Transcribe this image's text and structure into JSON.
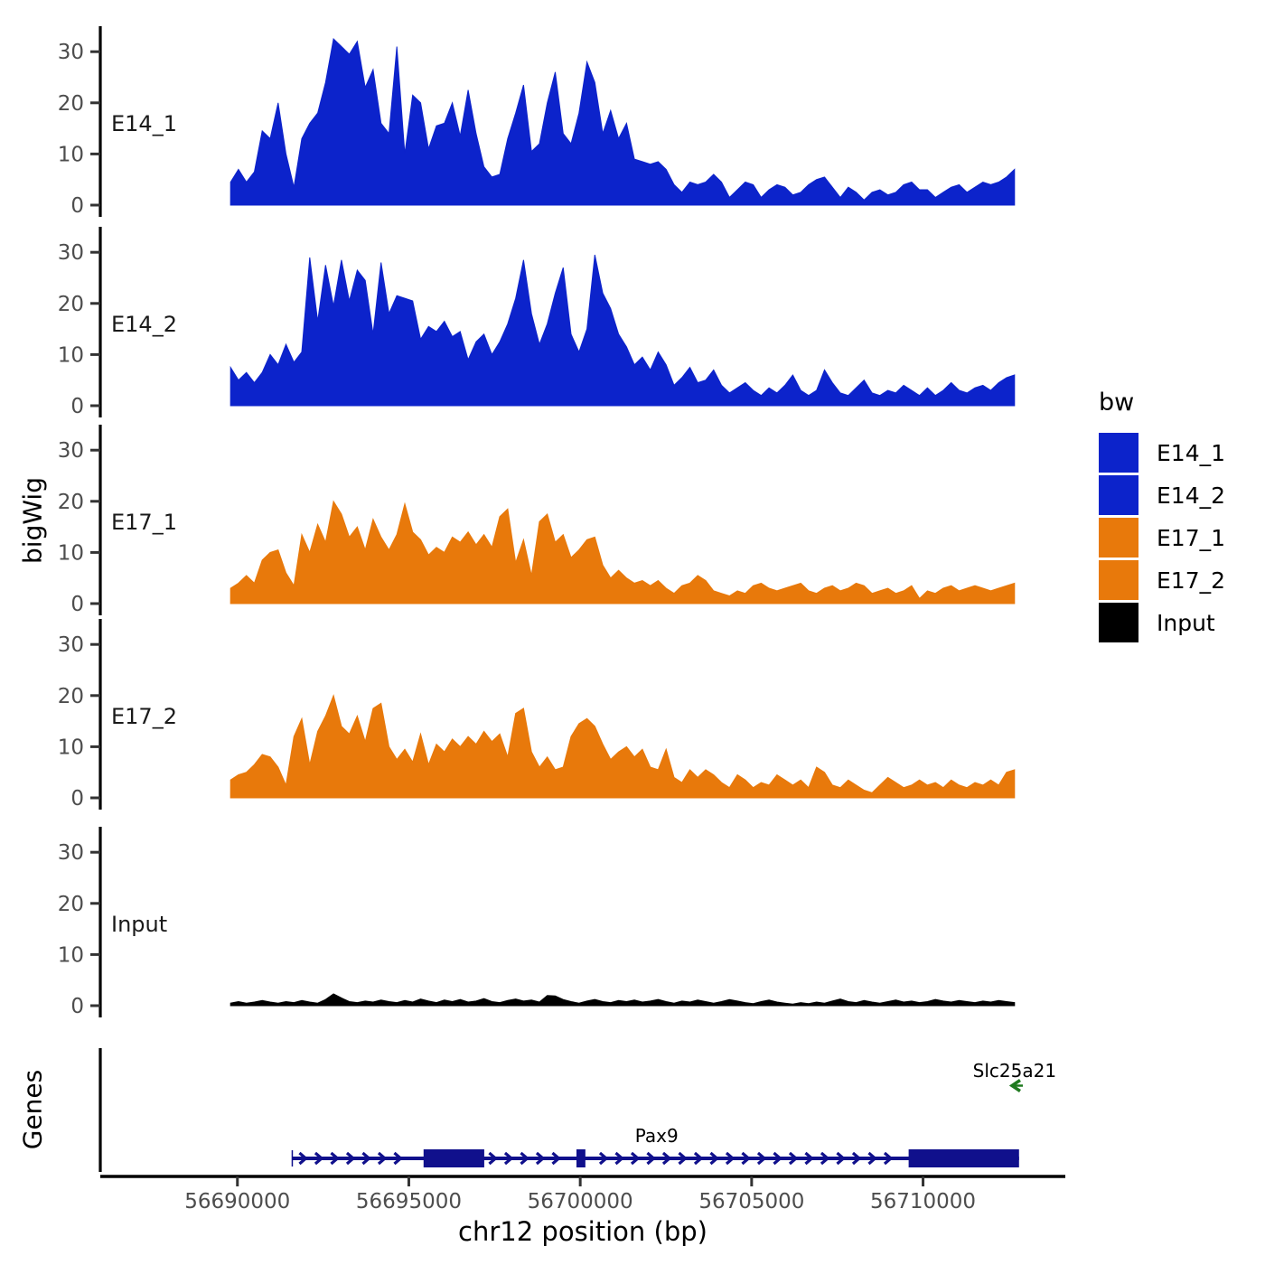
{
  "figure": {
    "y_axis_title": "bigWig",
    "genes_axis_title": "Genes",
    "x_axis_title": "chr12 position (bp)",
    "colors": {
      "blue": "#0C23CB",
      "orange": "#E8790B",
      "black": "#000000",
      "gene_navy": "#10108C",
      "gene_green": "#1F7A1F",
      "tick_label_grey": "#4D4D4D",
      "track_label_dark": "#1A1A1A"
    }
  },
  "legend": {
    "title": "bw",
    "items": [
      {
        "label": "E14_1",
        "color": "#0C23CB"
      },
      {
        "label": "E14_2",
        "color": "#0C23CB"
      },
      {
        "label": "E17_1",
        "color": "#E8790B"
      },
      {
        "label": "E17_2",
        "color": "#E8790B"
      },
      {
        "label": "Input",
        "color": "#000000"
      }
    ]
  },
  "chart_data": {
    "type": "area",
    "title": "",
    "xlabel": "chr12 position (bp)",
    "ylabel": "bigWig",
    "xlim": [
      56686000,
      56714150
    ],
    "ylim_per_track": [
      0,
      35
    ],
    "yticks": [
      0,
      10,
      20,
      30
    ],
    "xticks": [
      56690000,
      56695000,
      56700000,
      56705000,
      56710000
    ],
    "xtick_labels": [
      "56690000",
      "56695000",
      "56700000",
      "56705000",
      "56710000"
    ],
    "grid": false,
    "legend_position": "right",
    "x_start_bp": 56689800,
    "x_step_bp": 231,
    "n_points": 100,
    "series": [
      {
        "name": "E14_1",
        "color": "#0C23CB",
        "values": [
          4.5,
          7,
          4.5,
          6.5,
          14.5,
          13,
          20,
          10,
          3.5,
          13,
          16,
          18,
          24,
          32.5,
          31,
          29.5,
          32,
          23,
          26.5,
          16,
          14,
          31,
          10,
          21.5,
          20,
          11,
          15.5,
          16,
          20,
          13.5,
          22.5,
          14,
          7.5,
          5.5,
          6,
          13,
          18,
          23.5,
          10.5,
          12,
          20,
          26,
          14,
          12,
          18,
          28,
          24,
          14,
          18.5,
          13,
          16,
          9,
          8.5,
          8,
          8.5,
          7,
          4,
          2.5,
          4.5,
          4,
          4.5,
          6,
          4.5,
          1.5,
          3,
          4.5,
          4,
          1.5,
          3,
          4,
          3.5,
          2,
          2.5,
          4,
          5,
          5.5,
          3.5,
          1.5,
          3.5,
          2.5,
          1,
          2.5,
          3,
          2,
          2.5,
          4,
          4.5,
          3,
          3,
          1.5,
          2.5,
          3.5,
          4,
          2.5,
          3.5,
          4.5,
          4,
          4.5,
          5.5,
          7
        ]
      },
      {
        "name": "E14_2",
        "color": "#0C23CB",
        "values": [
          7.5,
          5,
          6.5,
          4.5,
          6.5,
          10,
          8,
          12,
          8.5,
          10.5,
          29,
          16.5,
          27.5,
          19.5,
          28.5,
          20.5,
          26.5,
          24.5,
          14,
          28,
          18,
          21.5,
          21,
          20.5,
          13,
          15.5,
          14.5,
          16.5,
          13.5,
          14.5,
          9,
          12.5,
          14,
          10,
          12.5,
          16,
          21,
          28.5,
          18,
          12,
          16,
          22,
          27,
          14,
          10.5,
          15,
          29.5,
          22,
          19,
          14,
          11.5,
          8,
          9.5,
          7,
          10.5,
          8,
          4,
          5.5,
          7.5,
          4.5,
          5,
          7,
          4,
          2.5,
          3.5,
          4.5,
          3,
          2,
          3.5,
          2.5,
          4,
          6,
          3,
          2,
          3,
          7,
          4.5,
          2.5,
          2,
          3.5,
          5,
          2.5,
          2,
          3,
          2.5,
          4,
          3,
          2,
          3.5,
          2,
          3,
          4.5,
          3,
          2.5,
          3.5,
          4,
          3,
          4.5,
          5.5,
          6
        ]
      },
      {
        "name": "E17_1",
        "color": "#E8790B",
        "values": [
          3,
          4,
          5.5,
          4,
          8.5,
          10,
          10.5,
          6,
          3.5,
          13.5,
          10,
          15.5,
          12,
          20,
          17.5,
          13,
          15,
          10.5,
          16.5,
          13,
          10.5,
          13.5,
          19.5,
          14,
          12.5,
          9.5,
          11,
          10,
          13,
          12,
          14,
          11.5,
          13.5,
          11,
          17,
          18.5,
          8,
          12.5,
          5.5,
          16,
          17.5,
          12,
          13.5,
          9,
          10.5,
          12.5,
          13,
          7.5,
          5,
          6.5,
          5,
          4,
          4.5,
          3.5,
          4.5,
          3,
          2,
          3.5,
          4,
          5.5,
          4.5,
          2.5,
          2,
          1.5,
          2.5,
          2,
          3.5,
          4,
          3,
          2.5,
          3,
          3.5,
          4,
          2.5,
          2,
          3,
          3.5,
          2.5,
          3,
          4,
          3.5,
          2,
          2.5,
          3,
          2,
          2.5,
          3.5,
          1,
          2.5,
          2,
          3,
          3.5,
          2.5,
          3,
          3.5,
          3,
          2.5,
          3,
          3.5,
          4
        ]
      },
      {
        "name": "E17_2",
        "color": "#E8790B",
        "values": [
          3.5,
          4.5,
          5,
          6.5,
          8.5,
          8,
          6,
          2.5,
          12,
          15.5,
          6.5,
          13,
          16,
          20,
          14,
          12.5,
          16,
          11,
          17.5,
          18.5,
          10,
          7.5,
          9.5,
          7,
          12.5,
          6.5,
          10.5,
          9,
          11.5,
          10,
          12,
          10.5,
          13,
          11,
          12.5,
          8,
          16.5,
          17.5,
          9,
          6,
          8,
          5.5,
          6,
          12,
          14.5,
          15.5,
          14,
          10.5,
          7.5,
          9,
          10,
          8,
          9.5,
          6,
          5.5,
          9.5,
          4,
          3,
          5.5,
          4,
          5.5,
          4.5,
          3,
          2,
          4.5,
          3.5,
          2,
          3,
          2.5,
          4.5,
          3.5,
          2.5,
          3.5,
          2,
          6,
          5,
          2.5,
          2,
          3.5,
          2.5,
          1.5,
          1,
          2.5,
          4,
          3,
          2,
          2.5,
          3.5,
          2.5,
          3,
          2,
          3.5,
          2.5,
          2,
          3,
          2.5,
          3.5,
          2.5,
          5,
          5.5
        ]
      },
      {
        "name": "Input",
        "color": "#000000",
        "values": [
          0.5,
          0.8,
          0.5,
          0.7,
          1,
          0.7,
          0.5,
          0.8,
          0.6,
          1,
          0.7,
          0.5,
          1.2,
          2.3,
          1.5,
          0.8,
          0.6,
          0.9,
          0.7,
          1.1,
          0.8,
          0.6,
          1,
          0.7,
          1.3,
          0.9,
          0.6,
          1.1,
          0.8,
          1.2,
          0.7,
          0.9,
          1.4,
          0.8,
          0.6,
          1,
          1.3,
          0.9,
          1.1,
          0.7,
          2,
          1.9,
          1.2,
          0.8,
          0.5,
          0.9,
          1.2,
          0.8,
          0.6,
          1,
          0.8,
          1.1,
          0.7,
          0.9,
          1.2,
          0.8,
          0.5,
          0.9,
          0.7,
          1.1,
          0.8,
          0.5,
          0.8,
          1.2,
          0.9,
          0.6,
          0.4,
          0.8,
          1.1,
          0.7,
          0.5,
          0.3,
          0.6,
          0.4,
          0.7,
          0.5,
          0.9,
          1.3,
          0.8,
          0.6,
          1,
          0.7,
          0.5,
          0.8,
          1.1,
          0.7,
          0.9,
          0.6,
          0.8,
          1.2,
          0.9,
          0.7,
          1,
          0.8,
          0.6,
          0.9,
          0.7,
          1,
          0.8,
          0.6
        ]
      }
    ],
    "genes": {
      "panel_label": "Genes",
      "items": [
        {
          "name": "Pax9",
          "strand": "+",
          "color": "#10108C",
          "line_bp": [
            56691600,
            56712800
          ],
          "exons_bp": [
            [
              56695430,
              56697200
            ],
            [
              56699890,
              56700150
            ],
            [
              56709580,
              56712800
            ]
          ],
          "label_bp": 56702230
        },
        {
          "name": "Slc25a21",
          "strand": "-",
          "color": "#1F7A1F",
          "arrow_bp": 56712700,
          "label_bp": 56712670
        }
      ]
    }
  }
}
